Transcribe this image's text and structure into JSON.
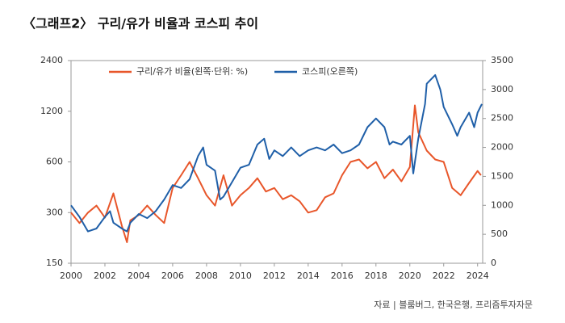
{
  "chart_data": {
    "type": "line",
    "title": "〈그래프2〉 구리/유가 비율과 코스피 추이",
    "source": "자료 | 블룸버그, 한국은행, 프리즘투자자문",
    "xlim": [
      2000,
      2024.3
    ],
    "xticks": [
      2000,
      2002,
      2004,
      2006,
      2008,
      2010,
      2012,
      2014,
      2016,
      2018,
      2020,
      2022,
      2024
    ],
    "ylim": [
      150,
      2400
    ],
    "yticks": [
      150,
      300,
      600,
      1200,
      2400
    ],
    "ylog": true,
    "y2lim": [
      0,
      3500
    ],
    "y2ticks": [
      0,
      500,
      1000,
      1500,
      2000,
      2500,
      3000,
      3500
    ],
    "series": [
      {
        "name": "구리/유가 비율(왼쪽·단위: %)",
        "color": "#e8562a",
        "x": [
          2000,
          2000.5,
          2001,
          2001.5,
          2002,
          2002.5,
          2003,
          2003.3,
          2003.5,
          2004,
          2004.5,
          2005,
          2005.5,
          2006,
          2006.5,
          2007,
          2007.5,
          2008,
          2008.5,
          2009,
          2009.5,
          2010,
          2010.5,
          2011,
          2011.5,
          2012,
          2012.5,
          2013,
          2013.5,
          2014,
          2014.5,
          2015,
          2015.5,
          2016,
          2016.5,
          2017,
          2017.5,
          2018,
          2018.5,
          2019,
          2019.5,
          2020,
          2020.3,
          2020.5,
          2021,
          2021.5,
          2022,
          2022.5,
          2023,
          2023.5,
          2024,
          2024.2
        ],
        "values": [
          300,
          260,
          300,
          330,
          280,
          390,
          250,
          200,
          270,
          290,
          330,
          290,
          260,
          420,
          500,
          600,
          480,
          380,
          330,
          500,
          330,
          380,
          420,
          480,
          400,
          420,
          360,
          380,
          350,
          300,
          310,
          370,
          390,
          500,
          600,
          620,
          550,
          600,
          480,
          540,
          460,
          560,
          1300,
          900,
          700,
          620,
          600,
          420,
          380,
          450,
          530,
          500
        ]
      },
      {
        "name": "코스피(오른쪽)",
        "color": "#1f5fa8",
        "axis": "y2",
        "x": [
          2000,
          2000.5,
          2001,
          2001.5,
          2002,
          2002.3,
          2002.5,
          2003,
          2003.3,
          2003.5,
          2004,
          2004.5,
          2005,
          2005.5,
          2006,
          2006.5,
          2007,
          2007.5,
          2007.8,
          2008,
          2008.5,
          2008.8,
          2009,
          2009.5,
          2010,
          2010.5,
          2011,
          2011.4,
          2011.7,
          2012,
          2012.5,
          2013,
          2013.5,
          2014,
          2014.5,
          2015,
          2015.5,
          2016,
          2016.5,
          2017,
          2017.5,
          2018,
          2018.5,
          2018.8,
          2019,
          2019.5,
          2020,
          2020.2,
          2020.5,
          2020.9,
          2021,
          2021.5,
          2021.8,
          2022,
          2022.5,
          2022.8,
          2023,
          2023.5,
          2023.8,
          2024,
          2024.25
        ],
        "values": [
          1000,
          800,
          550,
          600,
          800,
          900,
          700,
          600,
          550,
          700,
          850,
          780,
          900,
          1100,
          1350,
          1300,
          1450,
          1850,
          2000,
          1700,
          1600,
          1100,
          1150,
          1400,
          1650,
          1700,
          2050,
          2150,
          1800,
          1950,
          1850,
          2000,
          1850,
          1950,
          2000,
          1950,
          2050,
          1900,
          1950,
          2050,
          2350,
          2500,
          2350,
          2050,
          2100,
          2050,
          2200,
          1550,
          2150,
          2750,
          3100,
          3250,
          3000,
          2700,
          2400,
          2200,
          2350,
          2600,
          2350,
          2600,
          2750
        ]
      }
    ]
  }
}
